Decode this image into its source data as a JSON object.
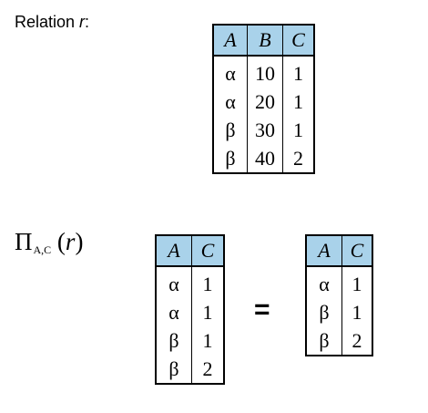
{
  "caption": {
    "prefix": "Relation ",
    "var": "r",
    "suffix": ":"
  },
  "projection": {
    "symbol": "Π",
    "subscript": "A,C",
    "open": " (",
    "arg": "r",
    "close": ")"
  },
  "equals": "=",
  "table_r": {
    "headers": [
      "A",
      "B",
      "C"
    ],
    "rows": [
      [
        "α",
        "10",
        "1"
      ],
      [
        "α",
        "20",
        "1"
      ],
      [
        "β",
        "30",
        "1"
      ],
      [
        "β",
        "40",
        "2"
      ]
    ]
  },
  "table_proj": {
    "headers": [
      "A",
      "C"
    ],
    "rows": [
      [
        "α",
        "1"
      ],
      [
        "α",
        "1"
      ],
      [
        "β",
        "1"
      ],
      [
        "β",
        "2"
      ]
    ]
  },
  "table_result": {
    "headers": [
      "A",
      "C"
    ],
    "rows": [
      [
        "α",
        "1"
      ],
      [
        "β",
        "1"
      ],
      [
        "β",
        "2"
      ]
    ]
  }
}
